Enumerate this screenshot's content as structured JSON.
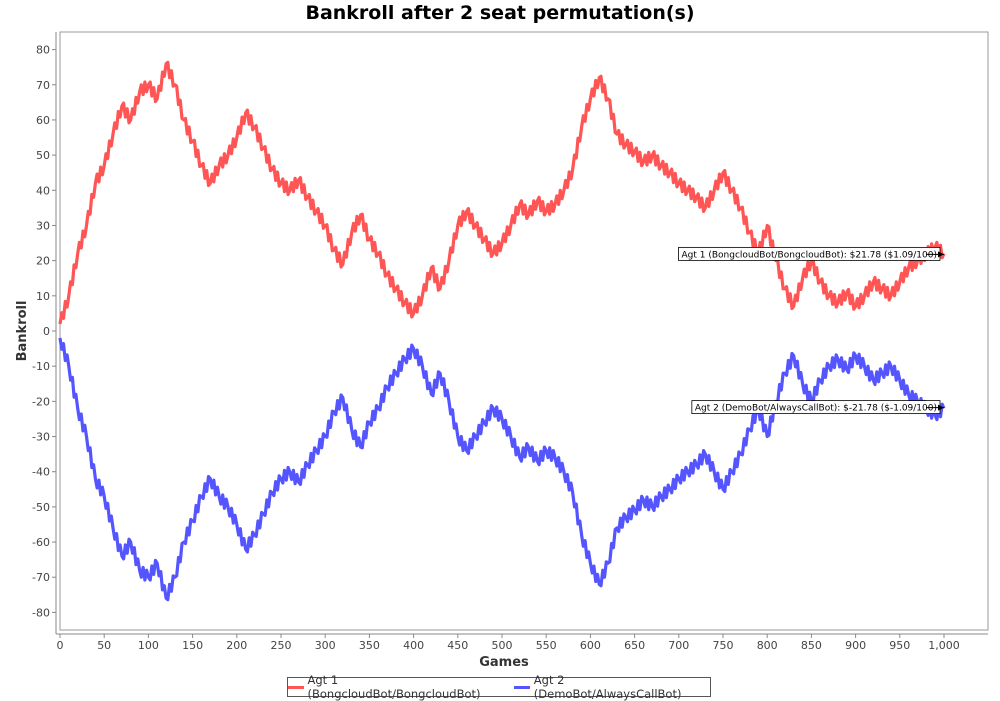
{
  "chart_data": {
    "type": "line",
    "title": "Bankroll after 2 seat permutation(s)",
    "xlabel": "Games",
    "ylabel": "Bankroll",
    "xlim": [
      0,
      1000
    ],
    "ylim": [
      -85,
      85
    ],
    "x_ticks": [
      0,
      50,
      100,
      150,
      200,
      250,
      300,
      350,
      400,
      450,
      500,
      550,
      600,
      650,
      700,
      750,
      800,
      850,
      900,
      950,
      1000
    ],
    "x_tick_labels": [
      "0",
      "50",
      "100",
      "150",
      "200",
      "250",
      "300",
      "350",
      "400",
      "450",
      "500",
      "550",
      "600",
      "650",
      "700",
      "750",
      "800",
      "850",
      "900",
      "950",
      "1,000"
    ],
    "y_ticks": [
      -80,
      -70,
      -60,
      -50,
      -40,
      -30,
      -20,
      -10,
      0,
      10,
      20,
      30,
      40,
      50,
      60,
      70,
      80
    ],
    "y_tick_labels": [
      "-80",
      "-70",
      "-60",
      "-50",
      "-40",
      "-30",
      "-20",
      "-10",
      "0",
      "10",
      "20",
      "30",
      "40",
      "50",
      "60",
      "70",
      "80"
    ],
    "grid": false,
    "legend_position": "bottom",
    "x": [
      0,
      10,
      20,
      30,
      40,
      50,
      60,
      70,
      80,
      90,
      100,
      110,
      120,
      130,
      140,
      150,
      160,
      170,
      180,
      190,
      200,
      210,
      220,
      230,
      240,
      250,
      260,
      270,
      280,
      290,
      300,
      310,
      320,
      330,
      340,
      350,
      360,
      370,
      380,
      390,
      400,
      410,
      420,
      430,
      440,
      450,
      460,
      470,
      480,
      490,
      500,
      510,
      520,
      530,
      540,
      550,
      560,
      570,
      580,
      590,
      600,
      610,
      620,
      630,
      640,
      650,
      660,
      670,
      680,
      690,
      700,
      710,
      720,
      730,
      740,
      750,
      760,
      770,
      780,
      790,
      800,
      810,
      820,
      830,
      840,
      850,
      860,
      870,
      880,
      890,
      900,
      910,
      920,
      930,
      940,
      950,
      960,
      970,
      980,
      990,
      1000
    ],
    "series": [
      {
        "name": "Agt 1 (BongcloudBot/BongcloudBot)",
        "color": "#ff5555",
        "values": [
          2,
          10,
          22,
          30,
          42,
          47,
          56,
          64,
          60,
          68,
          70,
          66,
          76,
          70,
          60,
          54,
          47,
          42,
          47,
          50,
          55,
          62,
          58,
          52,
          46,
          42,
          40,
          43,
          38,
          34,
          30,
          23,
          19,
          28,
          33,
          26,
          22,
          16,
          12,
          8,
          5,
          10,
          18,
          12,
          20,
          30,
          34,
          30,
          26,
          22,
          25,
          30,
          36,
          33,
          37,
          34,
          36,
          40,
          46,
          58,
          66,
          72,
          66,
          56,
          53,
          51,
          48,
          50,
          47,
          45,
          42,
          40,
          38,
          35,
          40,
          45,
          40,
          35,
          28,
          22,
          30,
          20,
          12,
          7,
          15,
          20,
          14,
          10,
          8,
          11,
          7,
          10,
          14,
          12,
          10,
          14,
          18,
          20,
          22,
          24,
          22
        ]
      },
      {
        "name": "Agt 2 (DemoBot/AlwaysCallBot)",
        "color": "#5555ff",
        "values": [
          -2,
          -10,
          -22,
          -30,
          -42,
          -47,
          -56,
          -64,
          -60,
          -68,
          -70,
          -66,
          -76,
          -70,
          -60,
          -54,
          -47,
          -42,
          -47,
          -50,
          -55,
          -62,
          -58,
          -52,
          -46,
          -42,
          -40,
          -43,
          -38,
          -34,
          -30,
          -23,
          -19,
          -28,
          -33,
          -26,
          -22,
          -16,
          -12,
          -8,
          -5,
          -10,
          -18,
          -12,
          -20,
          -30,
          -34,
          -30,
          -26,
          -22,
          -25,
          -30,
          -36,
          -33,
          -37,
          -34,
          -36,
          -40,
          -46,
          -58,
          -66,
          -72,
          -66,
          -56,
          -53,
          -51,
          -48,
          -50,
          -47,
          -45,
          -42,
          -40,
          -38,
          -35,
          -40,
          -45,
          -40,
          -35,
          -28,
          -22,
          -30,
          -20,
          -12,
          -7,
          -15,
          -20,
          -14,
          -10,
          -8,
          -11,
          -7,
          -10,
          -14,
          -12,
          -10,
          -14,
          -18,
          -20,
          -22,
          -24,
          -22
        ]
      }
    ],
    "annotations": [
      {
        "text": "Agt 1 (BongcloudBot/BongcloudBot): $21.78 ($1.09/100)",
        "x": 1000,
        "y": 21.78
      },
      {
        "text": "Agt 2 (DemoBot/AlwaysCallBot): $-21.78 ($-1.09/100)",
        "x": 1000,
        "y": -21.78
      }
    ]
  }
}
